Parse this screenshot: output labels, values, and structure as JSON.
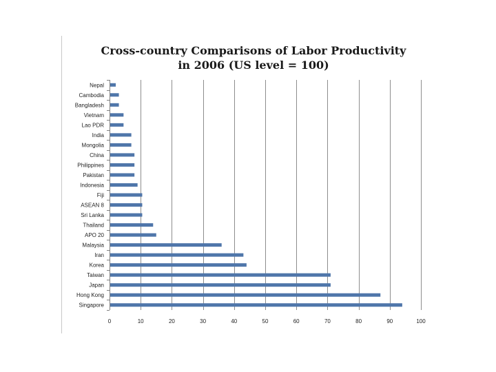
{
  "chart_data": {
    "type": "bar",
    "orientation": "horizontal",
    "title": "Cross-country Comparisons of Labor Productivity in 2006 (US level = 100)",
    "title_lines": [
      "Cross-country Comparisons of Labor Productivity",
      "in 2006 (US level = 100)"
    ],
    "xlabel": "",
    "ylabel": "",
    "xlim": [
      0,
      100
    ],
    "x_ticks": [
      0,
      10,
      20,
      30,
      40,
      50,
      60,
      70,
      80,
      90,
      100
    ],
    "grid": true,
    "legend": "none",
    "bar_color": "#4f76aa",
    "categories": [
      "Nepal",
      "Cambodia",
      "Bangladesh",
      "Vietnam",
      "Lao PDR",
      "India",
      "Mongolia",
      "China",
      "Philippines",
      "Pakistan",
      "Indonesia",
      "Fiji",
      "ASEAN 8",
      "Sri Lanka",
      "Thailand",
      "APO 20",
      "Malaysia",
      "Iran",
      "Korea",
      "Taiwan",
      "Japan",
      "Hong Kong",
      "Singapore"
    ],
    "values": [
      2,
      3,
      3,
      4.5,
      4.5,
      7,
      7,
      8,
      8,
      8,
      9,
      10.5,
      10.5,
      10.5,
      14,
      15,
      36,
      43,
      44,
      71,
      71,
      87,
      94
    ]
  }
}
